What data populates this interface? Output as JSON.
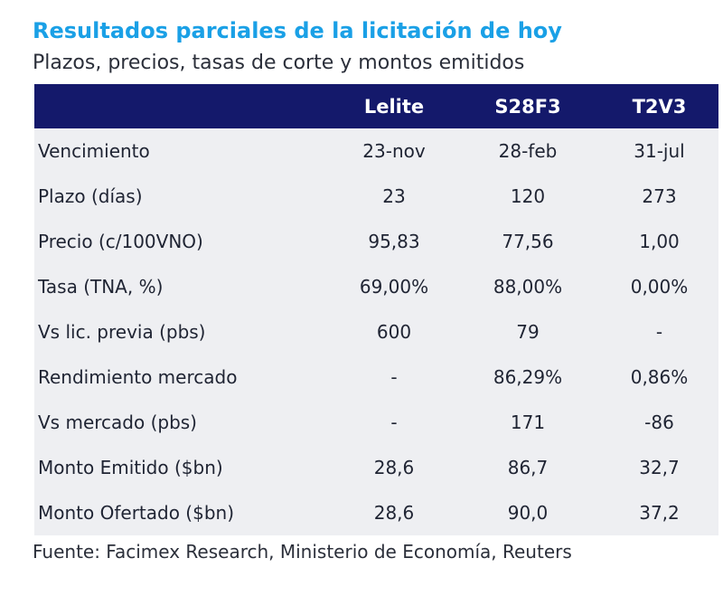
{
  "title": "Resultados parciales de la licitación de hoy",
  "subtitle": "Plazos, precios, tasas de corte y montos emitidos",
  "table": {
    "headers": [
      "",
      "Lelite",
      "S28F3",
      "T2V3"
    ],
    "rows": [
      [
        "Vencimiento",
        "23-nov",
        "28-feb",
        "31-jul"
      ],
      [
        "Plazo (días)",
        "23",
        "120",
        "273"
      ],
      [
        "Precio (c/100VNO)",
        "95,83",
        "77,56",
        "1,00"
      ],
      [
        "Tasa (TNA, %)",
        "69,00%",
        "88,00%",
        "0,00%"
      ],
      [
        "Vs lic. previa (pbs)",
        "600",
        "79",
        "-"
      ],
      [
        "Rendimiento mercado",
        "-",
        "86,29%",
        "0,86%"
      ],
      [
        "Vs mercado (pbs)",
        "-",
        "171",
        "-86"
      ],
      [
        "Monto Emitido ($bn)",
        "28,6",
        "86,7",
        "32,7"
      ],
      [
        "Monto Ofertado ($bn)",
        "28,6",
        "90,0",
        "37,2"
      ]
    ]
  },
  "footer": "Fuente: Facimex Research, Ministerio de Economía, Reuters",
  "colors": {
    "title": "#1aa0e6",
    "header_bg": "#14196b",
    "row_bg": "#eeeff2"
  }
}
